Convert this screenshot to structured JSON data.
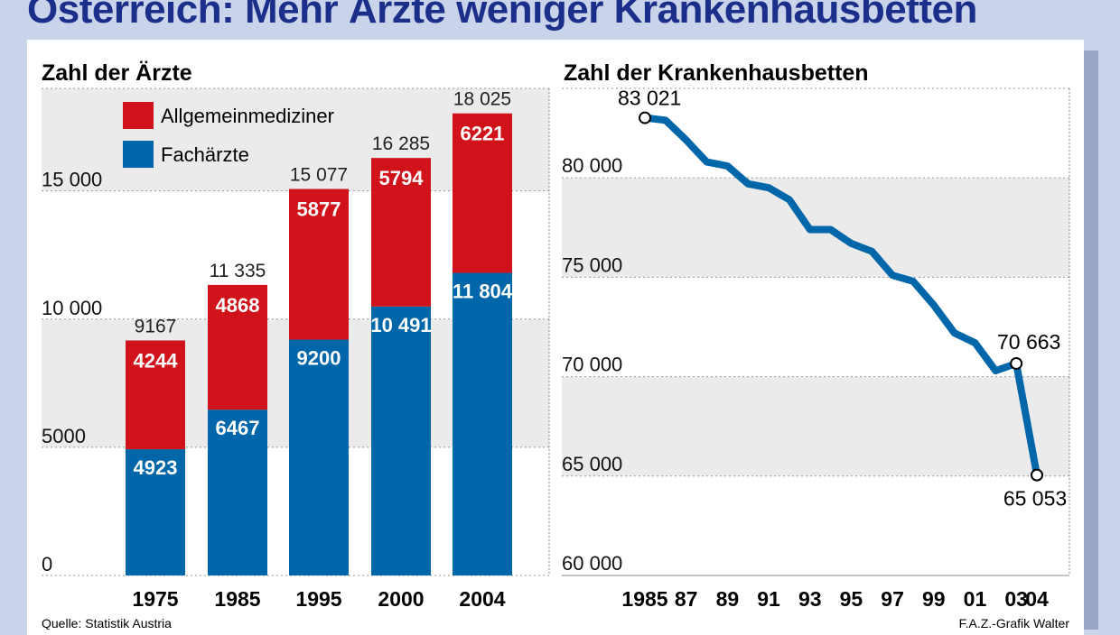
{
  "title": "Österreich: Mehr Ärzte weniger Krankenhausbetten",
  "source_left": "Quelle: Statistik Austria",
  "source_right": "F.A.Z.-Grafik Walter",
  "colors": {
    "allgemein": "#d0121a",
    "fach": "#0066aa",
    "line": "#0066aa",
    "band": "#ebebeb",
    "title": "#1b2f8a"
  },
  "chart_data": [
    {
      "type": "bar",
      "stacked": true,
      "title": "Zahl der Ärzte",
      "categories": [
        "1975",
        "1985",
        "1995",
        "2000",
        "2004"
      ],
      "series": [
        {
          "name": "Fachärzte",
          "values": [
            4923,
            6467,
            9200,
            10491,
            11804
          ],
          "labels": [
            "4923",
            "6467",
            "9200",
            "10 491",
            "11 804"
          ]
        },
        {
          "name": "Allgemeinmediziner",
          "values": [
            4244,
            4868,
            5877,
            5794,
            6221
          ],
          "labels": [
            "4244",
            "4868",
            "5877",
            "5794",
            "6221"
          ]
        }
      ],
      "totals": [
        9167,
        11335,
        15077,
        16285,
        18025
      ],
      "total_labels": [
        "9167",
        "11 335",
        "15 077",
        "16 285",
        "18 025"
      ],
      "ylim": [
        0,
        19000
      ],
      "yticks": [
        0,
        5000,
        10000,
        15000
      ],
      "ytick_labels": [
        "0",
        "5000",
        "10 000",
        "15 000"
      ],
      "legend": "top-left"
    },
    {
      "type": "line",
      "title": "Zahl der Krankenhausbetten",
      "x": [
        1985,
        1986,
        1987,
        1988,
        1989,
        1990,
        1991,
        1992,
        1993,
        1994,
        1995,
        1996,
        1997,
        1998,
        1999,
        2000,
        2001,
        2002,
        2003,
        2004
      ],
      "y": [
        83021,
        82900,
        81900,
        80800,
        80600,
        79700,
        79500,
        78900,
        77400,
        77400,
        76700,
        76300,
        75100,
        74800,
        73600,
        72200,
        71700,
        70300,
        70663,
        65053
      ],
      "xticks": [
        1985,
        1987,
        1989,
        1991,
        1993,
        1995,
        1997,
        1999,
        2001,
        2003,
        2004
      ],
      "xtick_labels": [
        "1985",
        "87",
        "89",
        "91",
        "93",
        "95",
        "97",
        "99",
        "01",
        "03",
        "04"
      ],
      "ylim": [
        60000,
        84500
      ],
      "yticks": [
        60000,
        65000,
        70000,
        75000,
        80000
      ],
      "ytick_labels": [
        "60 000",
        "65 000",
        "70 000",
        "75 000",
        "80 000"
      ],
      "annotations": [
        {
          "x": 1985,
          "y": 83021,
          "label": "83 021"
        },
        {
          "x": 2003,
          "y": 70663,
          "label": "70 663"
        },
        {
          "x": 2004,
          "y": 65053,
          "label": "65 053"
        }
      ]
    }
  ]
}
